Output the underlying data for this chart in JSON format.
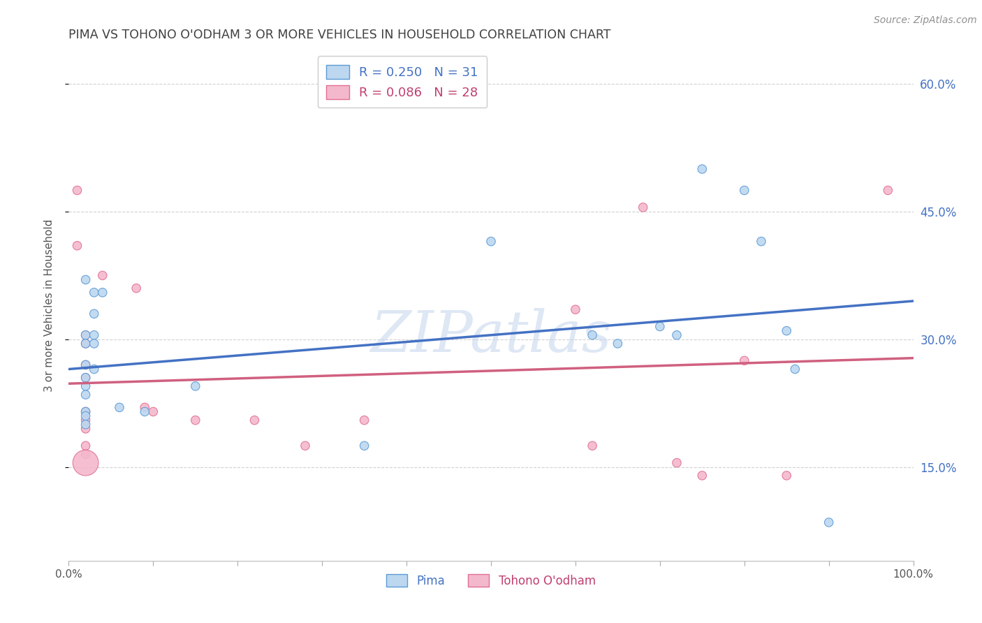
{
  "title": "PIMA VS TOHONO O'ODHAM 3 OR MORE VEHICLES IN HOUSEHOLD CORRELATION CHART",
  "source": "Source: ZipAtlas.com",
  "ylabel": "3 or more Vehicles in Household",
  "xlim": [
    0,
    1.0
  ],
  "ylim": [
    0.04,
    0.64
  ],
  "yticks": [
    0.15,
    0.3,
    0.45,
    0.6
  ],
  "ytick_labels": [
    "15.0%",
    "30.0%",
    "45.0%",
    "60.0%"
  ],
  "watermark": "ZIPatlas",
  "pima_color_edge": "#5b9bd5",
  "pima_color_fill": "#bdd7f0",
  "tohono_color_edge": "#e07090",
  "tohono_color_fill": "#f4b8cc",
  "pima_scatter": [
    [
      0.02,
      0.37
    ],
    [
      0.03,
      0.355
    ],
    [
      0.03,
      0.33
    ],
    [
      0.04,
      0.355
    ],
    [
      0.02,
      0.305
    ],
    [
      0.03,
      0.305
    ],
    [
      0.02,
      0.295
    ],
    [
      0.03,
      0.295
    ],
    [
      0.02,
      0.27
    ],
    [
      0.03,
      0.265
    ],
    [
      0.02,
      0.255
    ],
    [
      0.02,
      0.245
    ],
    [
      0.02,
      0.235
    ],
    [
      0.02,
      0.215
    ],
    [
      0.02,
      0.21
    ],
    [
      0.02,
      0.2
    ],
    [
      0.06,
      0.22
    ],
    [
      0.09,
      0.215
    ],
    [
      0.15,
      0.245
    ],
    [
      0.35,
      0.175
    ],
    [
      0.5,
      0.415
    ],
    [
      0.62,
      0.305
    ],
    [
      0.65,
      0.295
    ],
    [
      0.7,
      0.315
    ],
    [
      0.72,
      0.305
    ],
    [
      0.75,
      0.5
    ],
    [
      0.8,
      0.475
    ],
    [
      0.82,
      0.415
    ],
    [
      0.85,
      0.31
    ],
    [
      0.86,
      0.265
    ],
    [
      0.9,
      0.085
    ]
  ],
  "tohono_scatter": [
    [
      0.01,
      0.475
    ],
    [
      0.01,
      0.41
    ],
    [
      0.02,
      0.305
    ],
    [
      0.02,
      0.295
    ],
    [
      0.02,
      0.27
    ],
    [
      0.02,
      0.255
    ],
    [
      0.02,
      0.215
    ],
    [
      0.02,
      0.205
    ],
    [
      0.02,
      0.195
    ],
    [
      0.02,
      0.175
    ],
    [
      0.02,
      0.165
    ],
    [
      0.02,
      0.155
    ],
    [
      0.04,
      0.375
    ],
    [
      0.08,
      0.36
    ],
    [
      0.09,
      0.22
    ],
    [
      0.1,
      0.215
    ],
    [
      0.15,
      0.205
    ],
    [
      0.22,
      0.205
    ],
    [
      0.28,
      0.175
    ],
    [
      0.35,
      0.205
    ],
    [
      0.6,
      0.335
    ],
    [
      0.62,
      0.175
    ],
    [
      0.68,
      0.455
    ],
    [
      0.72,
      0.155
    ],
    [
      0.75,
      0.14
    ],
    [
      0.8,
      0.275
    ],
    [
      0.85,
      0.14
    ],
    [
      0.97,
      0.475
    ]
  ],
  "pima_sizes": [
    80,
    80,
    80,
    80,
    80,
    80,
    80,
    80,
    80,
    80,
    80,
    80,
    80,
    80,
    80,
    80,
    80,
    80,
    80,
    80,
    80,
    80,
    80,
    80,
    80,
    80,
    80,
    80,
    80,
    80,
    80
  ],
  "tohono_sizes": [
    80,
    80,
    80,
    80,
    80,
    80,
    80,
    80,
    80,
    80,
    80,
    80,
    80,
    80,
    80,
    80,
    80,
    80,
    80,
    80,
    80,
    80,
    80,
    80,
    80,
    80,
    80,
    80
  ],
  "tohono_large_idx": 11,
  "tohono_large_size": 700,
  "pima_trend": [
    0.0,
    0.265,
    1.0,
    0.345
  ],
  "tohono_trend": [
    0.0,
    0.248,
    1.0,
    0.278
  ],
  "background_color": "#ffffff",
  "grid_color": "#cccccc",
  "title_color": "#404040",
  "axis_color": "#555555",
  "right_tick_color": "#4472c4",
  "source_color": "#909090",
  "legend_pima_label": "R = 0.250   N = 31",
  "legend_tohono_label": "R = 0.086   N = 28",
  "legend_pima_text_color": "#4472c4",
  "legend_tohono_text_color": "#c04070",
  "bottom_pima_label": "Pima",
  "bottom_tohono_label": "Tohono O'odham",
  "watermark_color": "#c8d8ee",
  "watermark_alpha": 0.6
}
